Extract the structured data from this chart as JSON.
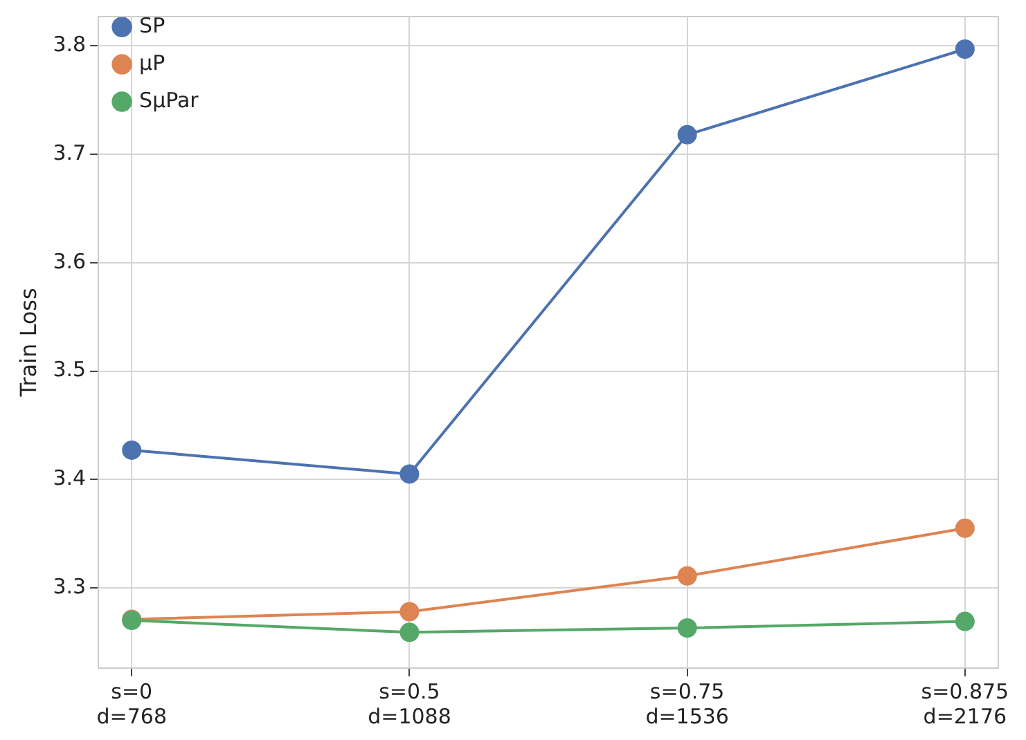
{
  "chart_data": {
    "type": "line",
    "ylabel": "Train Loss",
    "categories": [
      "s=0\nd=768",
      "s=0.5\nd=1088",
      "s=0.75\nd=1536",
      "s=0.875\nd=2176"
    ],
    "series": [
      {
        "name": "SP",
        "color": "#4c72b0",
        "values": [
          3.427,
          3.405,
          3.718,
          3.797
        ]
      },
      {
        "name": "μP",
        "color": "#dd8452",
        "values": [
          3.271,
          3.278,
          3.311,
          3.355
        ]
      },
      {
        "name": "SμPar",
        "color": "#55a868",
        "values": [
          3.27,
          3.259,
          3.263,
          3.269
        ]
      }
    ],
    "ylim": [
      3.226,
      3.827
    ],
    "yticks": [
      3.3,
      3.4,
      3.5,
      3.6,
      3.7,
      3.8
    ],
    "grid": true,
    "legend": "top left",
    "marker": "circle",
    "line_style": "solid"
  }
}
